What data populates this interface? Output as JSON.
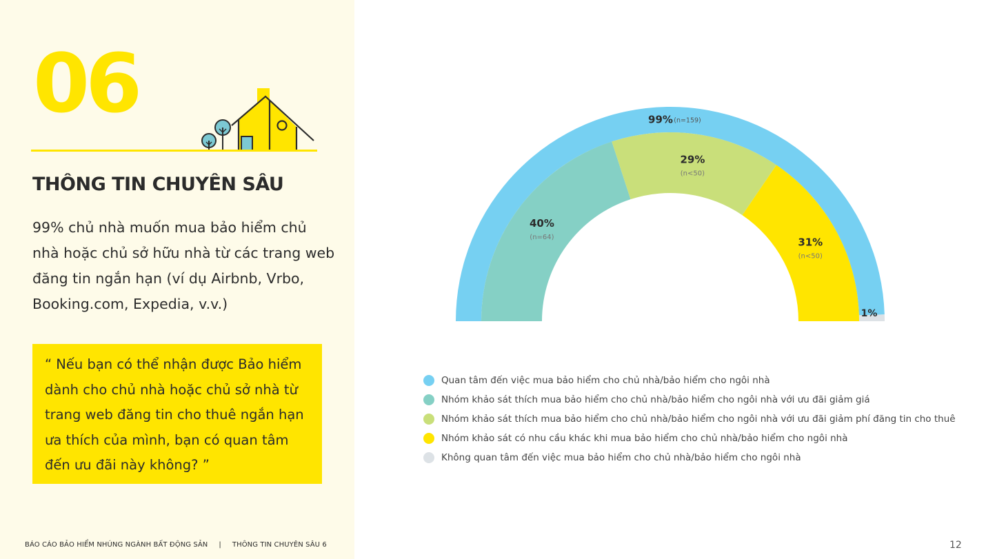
{
  "left": {
    "section_number": "06",
    "heading": "THÔNG TIN CHUYÊN SÂU",
    "summary": "99% chủ nhà muốn mua bảo hiểm chủ nhà hoặc chủ sở hữu nhà từ các trang web đăng tin ngắn hạn (ví dụ Airbnb, Vrbo, Booking.com, Expedia, v.v.)",
    "quote": "“ Nếu bạn có thể nhận được Bảo hiểm dành cho chủ nhà hoặc chủ sở nhà từ trang web đăng tin cho thuê ngắn hạn ưa thích của mình, bạn có quan tâm đến ưu đãi này không? ”"
  },
  "footer": {
    "report_title": "BÁO CÁO BẢO HIỂM NHÚNG NGÀNH BẤT ĐỘNG SẢN",
    "separator": "|",
    "section_label": "THÔNG TIN CHUYÊN SÂU 6",
    "page_number": "12"
  },
  "colors": {
    "accent_yellow": "#ffe500",
    "panel_bg": "#fefbe9",
    "blue": "#76d0f2",
    "teal": "#85d0c5",
    "green": "#c9df7a",
    "yellow": "#ffe500",
    "gray": "#dde2e6",
    "tree": "#7cc9d3"
  },
  "chart_data": {
    "type": "semi-donut",
    "outer_ring": [
      {
        "name": "Quan tâm đến việc mua bảo hiểm cho chủ nhà/bảo hiểm cho ngôi nhà",
        "value": 99,
        "label": "99%",
        "n": "(n=159)",
        "color": "#76d0f2"
      },
      {
        "name": "Không quan tâm đến việc mua bảo hiểm cho chủ nhà/bảo hiểm cho ngôi nhà",
        "value": 1,
        "label": "1%",
        "n": "",
        "color": "#dde2e6"
      }
    ],
    "inner_ring": [
      {
        "name": "Nhóm khảo sát thích mua bảo hiểm cho chủ nhà/bảo hiểm cho ngôi nhà với ưu đãi giảm giá",
        "value": 40,
        "label": "40%",
        "n": "(n=64)",
        "color": "#85d0c5"
      },
      {
        "name": "Nhóm khảo sát thích mua bảo hiểm cho chủ nhà/bảo hiểm cho ngôi nhà với ưu đãi giảm phí đăng tin cho thuê",
        "value": 29,
        "label": "29%",
        "n": "(n<50)",
        "color": "#c9df7a"
      },
      {
        "name": "Nhóm khảo sát có nhu cầu khác khi mua bảo hiểm cho chủ nhà/bảo hiểm cho ngôi nhà",
        "value": 31,
        "label": "31%",
        "n": "(n<50)",
        "color": "#ffe500"
      }
    ],
    "legend": [
      {
        "label": "Quan tâm đến việc mua bảo hiểm cho chủ nhà/bảo hiểm cho ngôi nhà",
        "color": "#76d0f2"
      },
      {
        "label": "Nhóm khảo sát thích mua bảo hiểm cho chủ nhà/bảo hiểm cho ngôi nhà với ưu đãi giảm giá",
        "color": "#85d0c5"
      },
      {
        "label": "Nhóm khảo sát thích mua bảo hiểm cho chủ nhà/bảo hiểm cho ngôi nhà với ưu đãi giảm phí đăng tin cho thuê",
        "color": "#c9df7a"
      },
      {
        "label": "Nhóm khảo sát có nhu cầu khác khi mua bảo hiểm cho chủ nhà/bảo hiểm cho ngôi nhà",
        "color": "#ffe500"
      },
      {
        "label": "Không quan tâm đến việc mua bảo hiểm cho chủ nhà/bảo hiểm cho ngôi nhà",
        "color": "#dde2e6"
      }
    ],
    "legend_position": "bottom"
  }
}
